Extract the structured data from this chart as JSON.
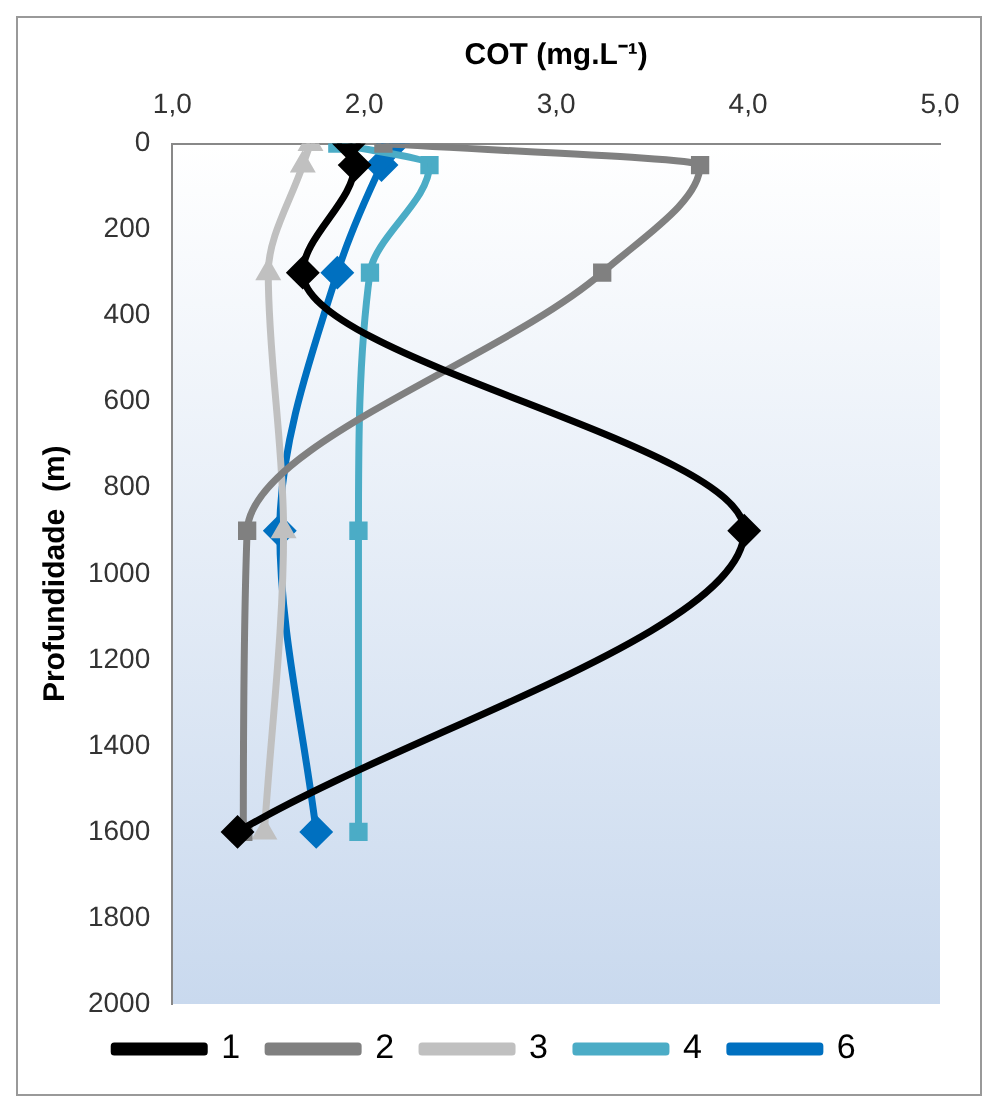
{
  "chart_data": {
    "type": "line",
    "xlabel": "COT (mg.L⁻¹)",
    "ylabel": "Profundidade  (m)",
    "xlim": [
      1,
      5
    ],
    "xticks": [
      {
        "value": 1,
        "label": "1,0"
      },
      {
        "value": 2,
        "label": "2,0"
      },
      {
        "value": 3,
        "label": "3,0"
      },
      {
        "value": 4,
        "label": "4,0"
      },
      {
        "value": 5,
        "label": "5,0"
      }
    ],
    "ylim": [
      2000,
      0
    ],
    "yticks": [
      0,
      200,
      400,
      600,
      800,
      1000,
      1200,
      1400,
      1600,
      1800,
      2000
    ],
    "grid": false,
    "legend": "bottom",
    "series": [
      {
        "name": "1",
        "color": "#000000",
        "marker": "diamond",
        "x": [
          1.92,
          1.95,
          1.68,
          3.98,
          1.34
        ],
        "values": [
          0,
          50,
          300,
          900,
          1600
        ]
      },
      {
        "name": "2",
        "color": "#808080",
        "marker": "square",
        "x": [
          2.1,
          3.75,
          3.24,
          1.39,
          1.37
        ],
        "values": [
          0,
          50,
          300,
          900,
          1600
        ]
      },
      {
        "name": "3",
        "color": "#c0c0c0",
        "marker": "triangle",
        "x": [
          1.72,
          1.68,
          1.5,
          1.58,
          1.48
        ],
        "values": [
          0,
          50,
          300,
          900,
          1600
        ]
      },
      {
        "name": "4",
        "color": "#4bacc6",
        "marker": "square",
        "x": [
          1.86,
          2.34,
          2.03,
          1.97,
          1.97
        ],
        "values": [
          0,
          50,
          300,
          900,
          1600
        ]
      },
      {
        "name": "6",
        "color": "#0070c0",
        "marker": "diamond",
        "x": [
          2.15,
          2.09,
          1.86,
          1.56,
          1.75
        ],
        "values": [
          0,
          50,
          300,
          900,
          1600
        ]
      }
    ]
  }
}
